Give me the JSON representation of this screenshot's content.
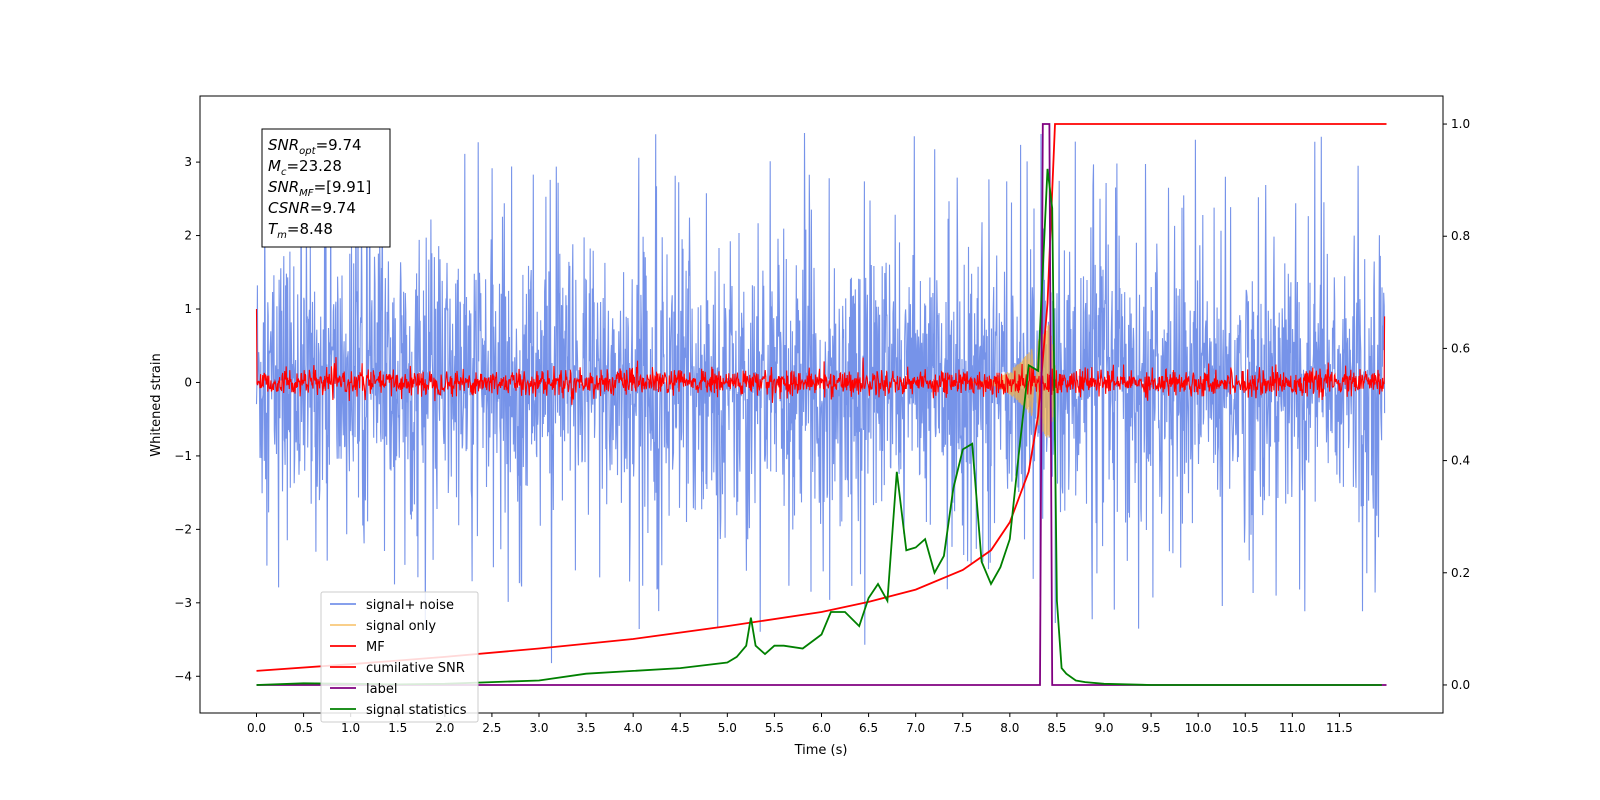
{
  "chart_data": {
    "type": "line",
    "title": "",
    "xlabel": "Time (s)",
    "ylabel": "Whitened strain",
    "xlim": [
      -0.6,
      12.6
    ],
    "ylim": [
      -4.5,
      3.9
    ],
    "ylim_right": [
      -0.05,
      1.05
    ],
    "x_ticks": [
      0.0,
      0.5,
      1.0,
      1.5,
      2.0,
      2.5,
      3.0,
      3.5,
      4.0,
      4.5,
      5.0,
      5.5,
      6.0,
      6.5,
      7.0,
      7.5,
      8.0,
      8.5,
      9.0,
      9.5,
      10.0,
      10.5,
      11.0,
      11.5
    ],
    "x_tick_labels": [
      "0.0",
      "0.5",
      "1.0",
      "1.5",
      "2.0",
      "2.5",
      "3.0",
      "3.5",
      "4.0",
      "4.5",
      "5.0",
      "5.5",
      "6.0",
      "6.5",
      "7.0",
      "7.5",
      "8.0",
      "8.5",
      "9.0",
      "9.5",
      "10.0",
      "10.5",
      "11.0",
      "11.5"
    ],
    "y_ticks": [
      -4,
      -3,
      -2,
      -1,
      0,
      1,
      2,
      3
    ],
    "y_tick_labels": [
      "−4",
      "−3",
      "−2",
      "−1",
      "0",
      "1",
      "2",
      "3"
    ],
    "y_right_ticks": [
      0.0,
      0.2,
      0.4,
      0.6,
      0.8,
      1.0
    ],
    "y_right_tick_labels": [
      "0.0",
      "0.2",
      "0.4",
      "0.6",
      "0.8",
      "1.0"
    ],
    "grid": false,
    "legend_position": "lower-left",
    "annotation": [
      {
        "sym": "SNR",
        "sub": "opt",
        "text": "=9.74"
      },
      {
        "sym": "M",
        "sub": "c",
        "text": "=23.28"
      },
      {
        "sym": "SNR",
        "sub": "MF",
        "text": "=[9.91]"
      },
      {
        "sym": "CSNR",
        "sub": "",
        "text": "=9.74"
      },
      {
        "sym": "T",
        "sub": "m",
        "text": "=8.48"
      }
    ],
    "series": [
      {
        "name": "signal+ noise",
        "color": "#4169e1",
        "axis": "left",
        "style": "noise",
        "x_range": [
          0,
          11.98
        ],
        "envelope": 1.8,
        "peak": 3.5,
        "trough": -4.1
      },
      {
        "name": "signal only",
        "color": "#f5b041",
        "axis": "left",
        "style": "chirp",
        "x_range": [
          7.6,
          8.5
        ],
        "peak_amplitude": 1.0
      },
      {
        "name": "MF",
        "color": "#ff0000",
        "axis": "left",
        "style": "noise",
        "x_range": [
          0,
          11.98
        ],
        "envelope": 0.2,
        "edge_values": [
          1.0,
          0.9
        ]
      },
      {
        "name": "cumilative SNR",
        "color": "#ff0000",
        "axis": "right",
        "x": [
          0,
          1,
          2,
          3,
          4,
          5,
          6,
          6.5,
          7,
          7.5,
          7.8,
          8.0,
          8.2,
          8.3,
          8.4,
          8.48,
          8.5,
          12.0
        ],
        "values": [
          0.025,
          0.037,
          0.05,
          0.065,
          0.082,
          0.105,
          0.13,
          0.148,
          0.17,
          0.205,
          0.24,
          0.29,
          0.38,
          0.48,
          0.68,
          1.0,
          1.0,
          1.0
        ]
      },
      {
        "name": "label",
        "color": "#800080",
        "axis": "right",
        "x": [
          0,
          8.32,
          8.35,
          8.42,
          8.45,
          12.0
        ],
        "values": [
          0.0,
          0.0,
          1.0,
          1.0,
          0.0,
          0.0
        ]
      },
      {
        "name": "signal statistics",
        "color": "#008000",
        "axis": "right",
        "x": [
          0,
          0.5,
          1,
          1.5,
          2,
          2.5,
          3,
          3.5,
          4,
          4.5,
          5,
          5.1,
          5.2,
          5.25,
          5.3,
          5.4,
          5.5,
          5.6,
          5.8,
          6.0,
          6.1,
          6.25,
          6.4,
          6.5,
          6.6,
          6.7,
          6.8,
          6.9,
          7.0,
          7.1,
          7.2,
          7.3,
          7.4,
          7.5,
          7.6,
          7.7,
          7.8,
          7.9,
          8.0,
          8.1,
          8.2,
          8.3,
          8.4,
          8.45,
          8.5,
          8.55,
          8.6,
          8.7,
          8.8,
          9.0,
          9.5,
          10,
          11,
          11.95
        ],
        "values": [
          0.0,
          0.003,
          0.002,
          0.001,
          0.002,
          0.005,
          0.008,
          0.02,
          0.025,
          0.03,
          0.04,
          0.05,
          0.07,
          0.12,
          0.07,
          0.055,
          0.07,
          0.07,
          0.065,
          0.09,
          0.13,
          0.13,
          0.105,
          0.155,
          0.18,
          0.15,
          0.38,
          0.24,
          0.245,
          0.26,
          0.2,
          0.23,
          0.35,
          0.42,
          0.43,
          0.22,
          0.18,
          0.21,
          0.26,
          0.42,
          0.57,
          0.56,
          0.92,
          0.85,
          0.15,
          0.03,
          0.02,
          0.008,
          0.005,
          0.002,
          0.0,
          0.0,
          0.0,
          0.0
        ]
      }
    ]
  }
}
